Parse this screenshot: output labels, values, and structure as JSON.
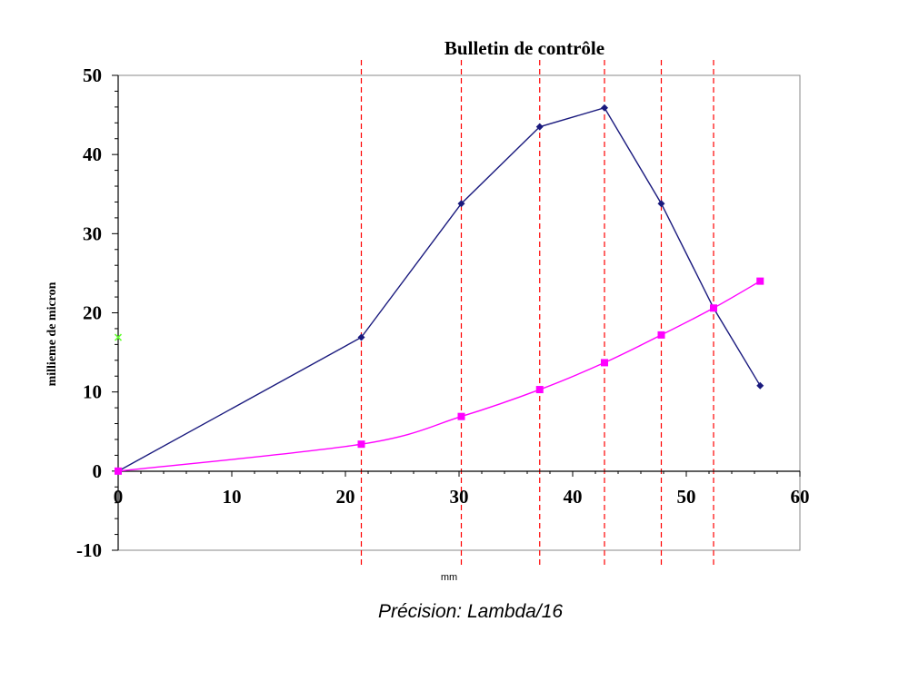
{
  "chart_data": {
    "type": "line",
    "title": "Bulletin de contrôle",
    "xlabel": "mm",
    "ylabel": "millieme de micron",
    "xlim": [
      0,
      60
    ],
    "ylim": [
      -10,
      50
    ],
    "x_ticks": [
      0,
      10,
      20,
      30,
      40,
      50,
      60
    ],
    "y_ticks": [
      -10,
      0,
      10,
      20,
      30,
      40,
      50
    ],
    "grid": false,
    "series": [
      {
        "marker": "diamond",
        "color": "#1a1a7e",
        "points": [
          [
            0,
            0
          ],
          [
            21.4,
            16.9
          ],
          [
            30.2,
            33.8
          ],
          [
            37.1,
            43.5
          ],
          [
            42.8,
            45.9
          ],
          [
            47.8,
            33.8
          ],
          [
            52.4,
            20.6
          ],
          [
            56.5,
            10.8
          ]
        ]
      },
      {
        "marker": "square",
        "color": "#ff00ff",
        "points": [
          [
            0,
            0
          ],
          [
            21.4,
            3.4
          ],
          [
            30.2,
            6.9
          ],
          [
            37.1,
            10.3
          ],
          [
            42.8,
            13.7
          ],
          [
            47.8,
            17.2
          ],
          [
            52.4,
            20.6
          ],
          [
            56.5,
            24.0
          ]
        ]
      },
      {
        "marker": "cross",
        "color": "#66ff33",
        "points": [
          [
            0,
            16.9
          ]
        ]
      }
    ],
    "reference_lines_x": [
      21.4,
      30.2,
      37.1,
      42.8,
      47.8,
      52.4
    ],
    "reference_line_color": "#ff0000"
  },
  "caption": "Précision: Lambda/16"
}
